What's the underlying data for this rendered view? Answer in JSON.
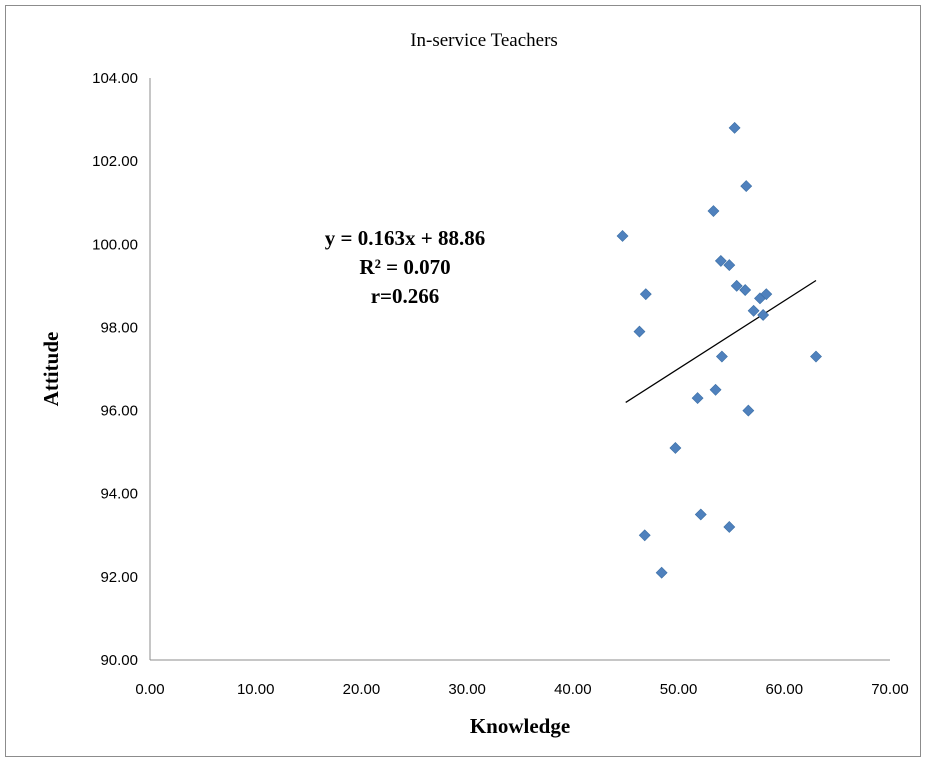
{
  "chart_data": {
    "type": "scatter",
    "title": "In-service Teachers",
    "xlabel": "Knowledge",
    "ylabel": "Attitude",
    "xlim": [
      0,
      70
    ],
    "ylim": [
      90,
      104
    ],
    "x_ticks": [
      "0.00",
      "10.00",
      "20.00",
      "30.00",
      "40.00",
      "50.00",
      "60.00",
      "70.00"
    ],
    "y_ticks": [
      "90.00",
      "92.00",
      "94.00",
      "96.00",
      "98.00",
      "100.00",
      "102.00",
      "104.00"
    ],
    "grid": false,
    "marker_color": "#4f81bd",
    "points": [
      {
        "x": 44.7,
        "y": 100.2
      },
      {
        "x": 46.3,
        "y": 97.9
      },
      {
        "x": 46.9,
        "y": 98.8
      },
      {
        "x": 46.8,
        "y": 93.0
      },
      {
        "x": 48.4,
        "y": 92.1
      },
      {
        "x": 49.7,
        "y": 95.1
      },
      {
        "x": 51.8,
        "y": 96.3
      },
      {
        "x": 52.1,
        "y": 93.5
      },
      {
        "x": 53.3,
        "y": 100.8
      },
      {
        "x": 53.5,
        "y": 96.5
      },
      {
        "x": 54.0,
        "y": 99.6
      },
      {
        "x": 54.1,
        "y": 97.3
      },
      {
        "x": 54.8,
        "y": 99.5
      },
      {
        "x": 54.8,
        "y": 93.2
      },
      {
        "x": 55.3,
        "y": 102.8
      },
      {
        "x": 55.5,
        "y": 99.0
      },
      {
        "x": 56.3,
        "y": 98.9
      },
      {
        "x": 56.4,
        "y": 101.4
      },
      {
        "x": 56.6,
        "y": 96.0
      },
      {
        "x": 57.1,
        "y": 98.4
      },
      {
        "x": 57.7,
        "y": 98.7
      },
      {
        "x": 58.0,
        "y": 98.3
      },
      {
        "x": 58.3,
        "y": 98.8
      },
      {
        "x": 63.0,
        "y": 97.3
      }
    ],
    "trendline": {
      "slope": 0.163,
      "intercept": 88.86,
      "x_start": 45,
      "x_end": 63
    },
    "annotations": [
      "y = 0.163x + 88.86",
      "R² = 0.070",
      "r=0.266"
    ]
  }
}
